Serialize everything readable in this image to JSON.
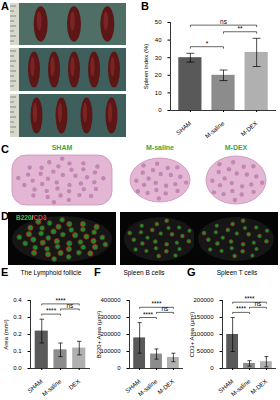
{
  "figure": {
    "panel_labels": [
      "A",
      "B",
      "C",
      "D",
      "E",
      "F",
      "G"
    ],
    "group_labels": [
      "SHAM",
      "M-saline",
      "M-DEX"
    ],
    "stain_label": [
      "B220",
      "/",
      "CD3"
    ]
  },
  "chart_data": [
    {
      "type": "bar",
      "y_label": "Spleen index (%)",
      "categories": [
        "SHAM",
        "M-saline",
        "M-DEX"
      ],
      "values": [
        30,
        20,
        33
      ],
      "errors": [
        2.5,
        3,
        8
      ],
      "colors": [
        "#595959",
        "#8c8c8c",
        "#b0b0b0"
      ],
      "ylim": [
        0,
        50
      ],
      "yticks": [
        0,
        10,
        20,
        30,
        40,
        50
      ],
      "significance": [
        {
          "between": [
            "SHAM",
            "M-saline"
          ],
          "label": "*"
        },
        {
          "between": [
            "M-saline",
            "M-DEX"
          ],
          "label": "**"
        },
        {
          "between": [
            "SHAM",
            "M-DEX"
          ],
          "label": "ns"
        }
      ]
    },
    {
      "type": "bar",
      "title": "The Lymphoid follicle",
      "y_label": "Area (mm²)",
      "categories": [
        "SHAM",
        "M-saline",
        "DEX"
      ],
      "values": [
        0.22,
        0.11,
        0.12
      ],
      "errors": [
        0.07,
        0.04,
        0.04
      ],
      "colors": [
        "#595959",
        "#8c8c8c",
        "#b0b0b0"
      ],
      "ylim": [
        0,
        0.4
      ],
      "yticks": [
        {
          "value": 0,
          "label": "0.0"
        },
        0.1,
        0.2,
        0.3,
        0.4
      ],
      "significance": [
        {
          "between": [
            "SHAM",
            "M-saline"
          ],
          "label": "****"
        },
        {
          "between": [
            "M-saline",
            "DEX"
          ],
          "label": "ns"
        },
        {
          "between": [
            "SHAM",
            "DEX"
          ],
          "label": "****"
        }
      ]
    },
    {
      "type": "bar",
      "title": "Spleen B cells",
      "y_label": "B220+ Area (μm²)",
      "categories": [
        "SHAM",
        "M-saline",
        "M-DEX"
      ],
      "values": [
        180000,
        85000,
        65000
      ],
      "errors": [
        90000,
        30000,
        25000
      ],
      "colors": [
        "#595959",
        "#8c8c8c",
        "#b0b0b0"
      ],
      "ylim": [
        0,
        400000
      ],
      "yticks": [
        0,
        100000,
        200000,
        300000,
        400000
      ],
      "significance": [
        {
          "between": [
            "SHAM",
            "M-saline"
          ],
          "label": "****"
        },
        {
          "between": [
            "M-saline",
            "M-DEX"
          ],
          "label": "ns"
        },
        {
          "between": [
            "SHAM",
            "M-DEX"
          ],
          "label": "****"
        }
      ]
    },
    {
      "type": "bar",
      "title": "Spleen T cells",
      "y_label": "CD3+ Area (μm²)",
      "categories": [
        "SHAM",
        "M-saline",
        "M-DEX"
      ],
      "values": [
        100000,
        15000,
        20000
      ],
      "errors": [
        50000,
        8000,
        15000
      ],
      "colors": [
        "#595959",
        "#8c8c8c",
        "#b0b0b0"
      ],
      "ylim": [
        0,
        200000
      ],
      "yticks": [
        0,
        50000,
        100000,
        150000,
        200000
      ],
      "significance": [
        {
          "between": [
            "SHAM",
            "M-saline"
          ],
          "label": "****"
        },
        {
          "between": [
            "M-saline",
            "M-DEX"
          ],
          "label": "ns"
        },
        {
          "between": [
            "SHAM",
            "M-DEX"
          ],
          "label": "****"
        }
      ]
    }
  ]
}
